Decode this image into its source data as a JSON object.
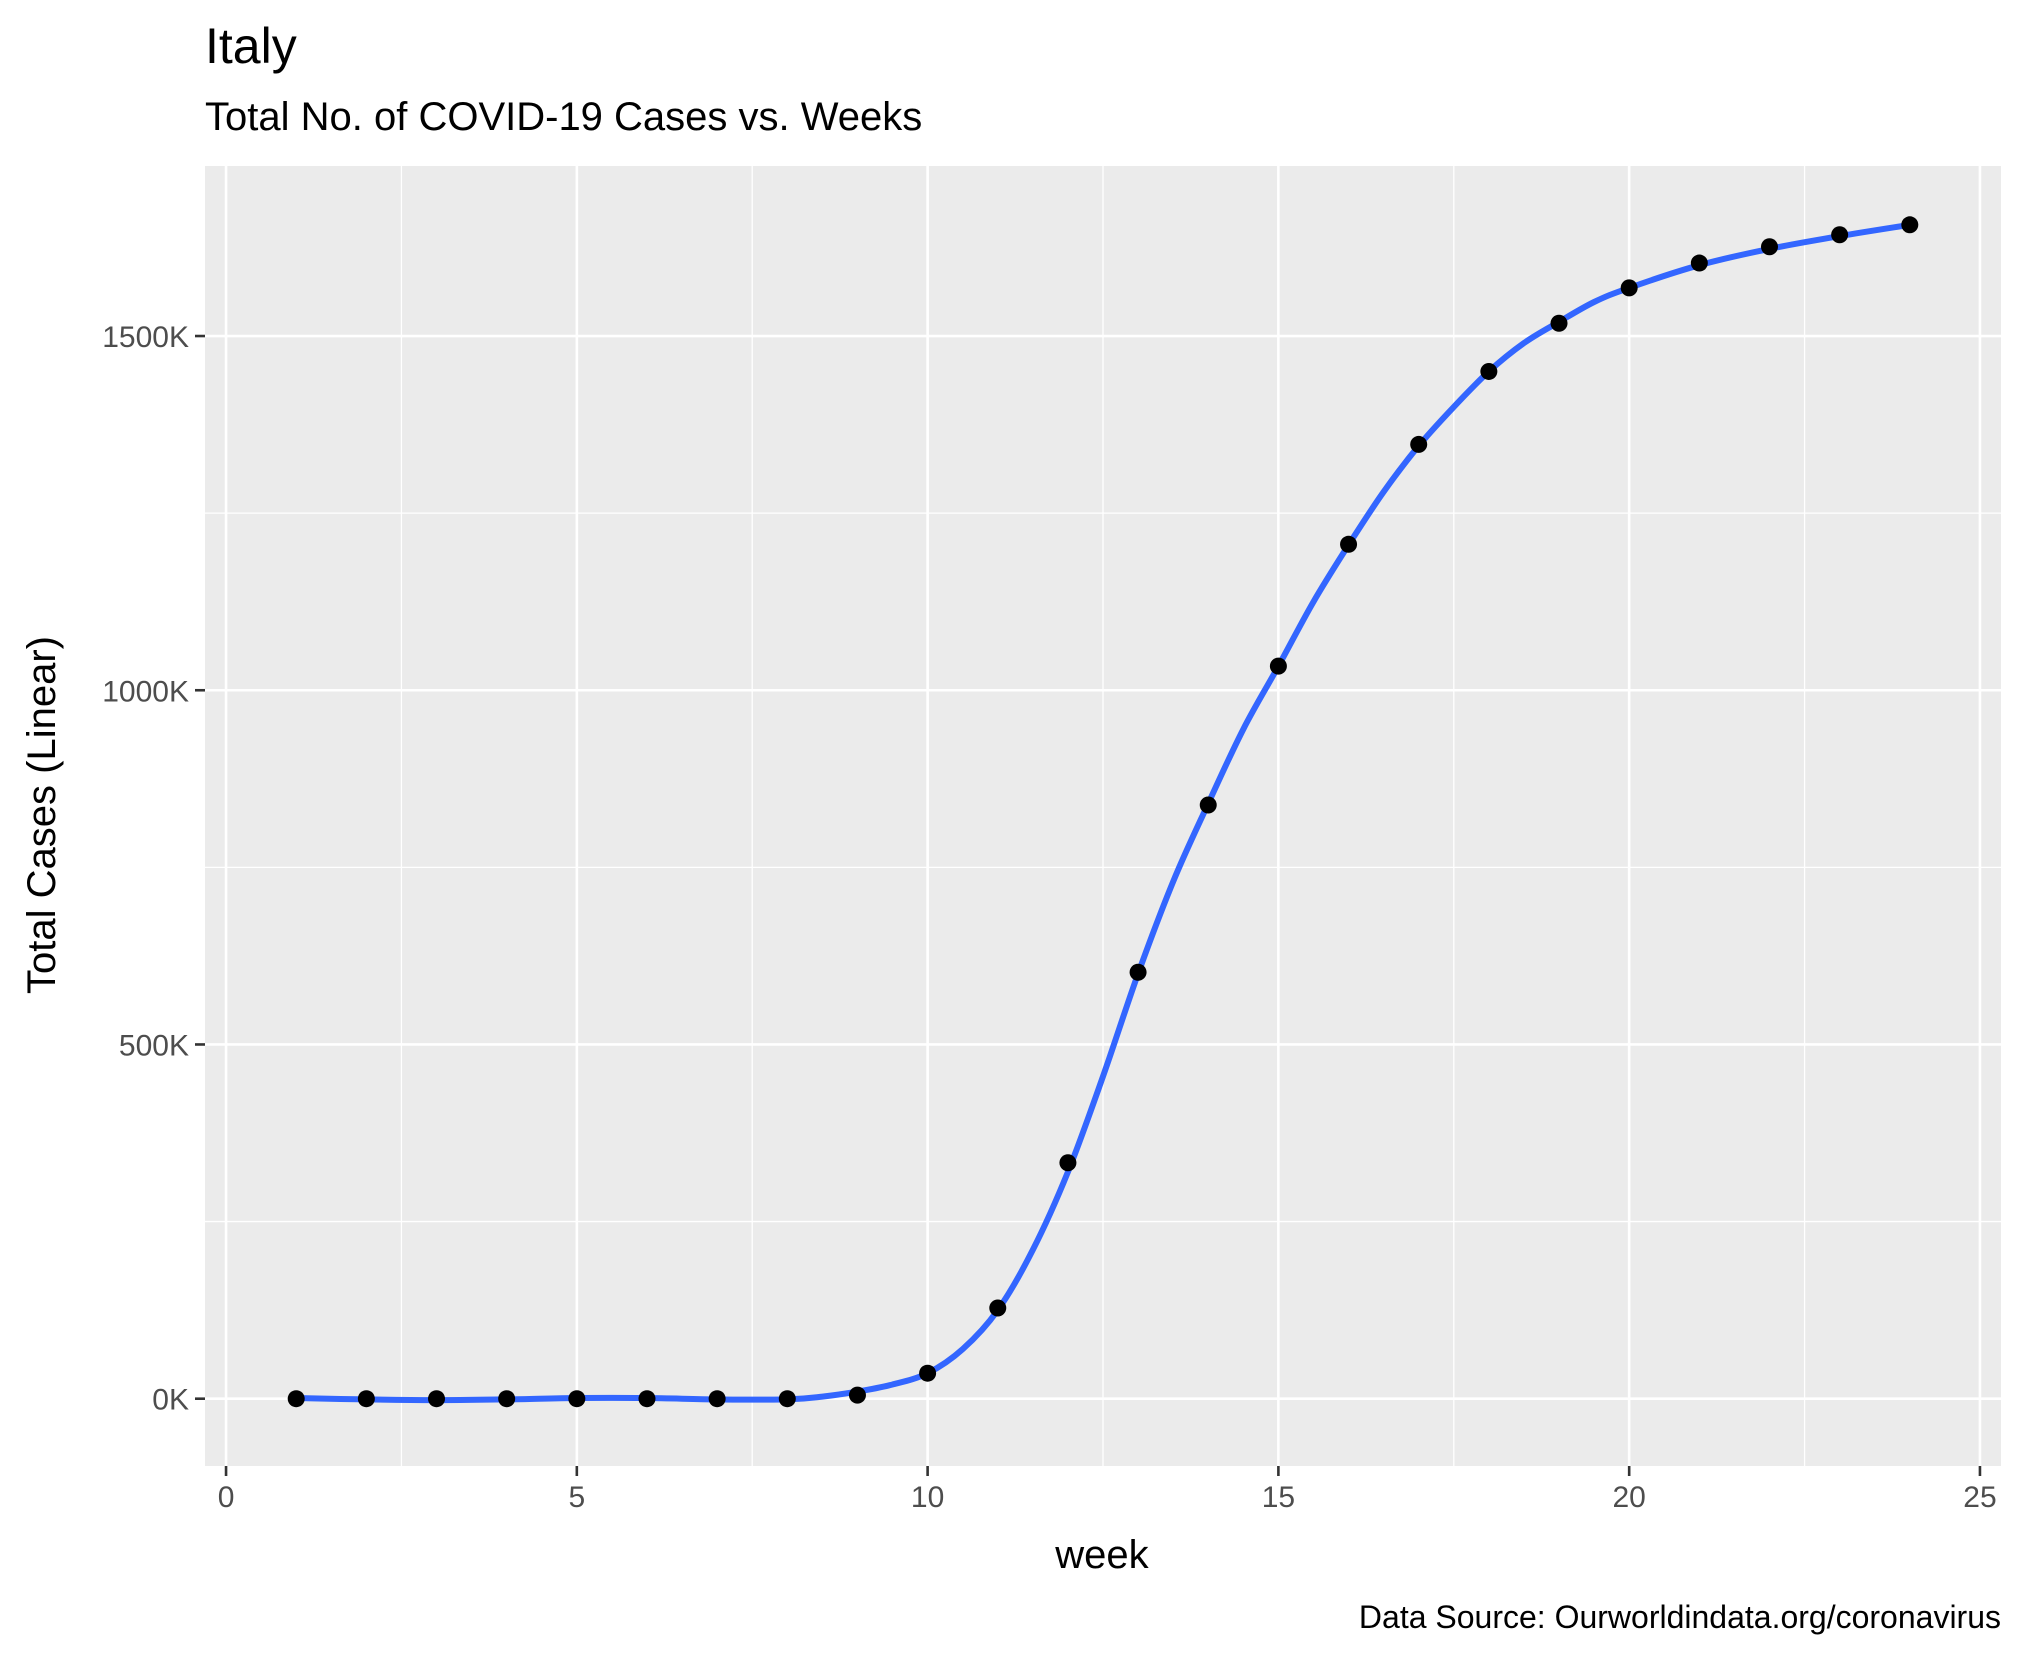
{
  "chart_data": {
    "type": "scatter",
    "title": "Italy",
    "subtitle": "Total No. of COVID-19 Cases vs. Weeks",
    "xlabel": "week",
    "ylabel": "Total Cases (Linear)",
    "caption": "Data Source: Ourworldindata.org/coronavirus",
    "xlim": [
      -0.3,
      25.3
    ],
    "ylim": [
      -95000,
      1740000
    ],
    "x_ticks": [
      0,
      5,
      10,
      15,
      20,
      25
    ],
    "x_tick_labels": [
      "0",
      "5",
      "10",
      "15",
      "20",
      "25"
    ],
    "y_ticks": [
      0,
      500000,
      1000000,
      1500000
    ],
    "y_tick_labels": [
      "0K",
      "500K",
      "1000K",
      "1500K"
    ],
    "grid": true,
    "points": {
      "x": [
        1,
        2,
        3,
        4,
        5,
        6,
        7,
        8,
        9,
        10,
        11,
        12,
        13,
        14,
        15,
        16,
        17,
        18,
        19,
        20,
        21,
        22,
        23,
        24
      ],
      "y": [
        0,
        0,
        0,
        0,
        0,
        0,
        0,
        0,
        5000,
        36000,
        128000,
        333000,
        602000,
        838000,
        1034000,
        1206000,
        1347000,
        1450000,
        1518000,
        1568000,
        1603000,
        1626000,
        1643000,
        1657000
      ]
    },
    "smooth": {
      "x": [
        1,
        2,
        3,
        4,
        5,
        6,
        7,
        8,
        8.5,
        9,
        9.5,
        10,
        10.5,
        11,
        11.5,
        12,
        12.5,
        13,
        13.5,
        14,
        14.5,
        15,
        15.5,
        16,
        16.5,
        17,
        17.5,
        18,
        18.5,
        19,
        19.5,
        20,
        21,
        22,
        23,
        24
      ],
      "y": [
        1000,
        -1000,
        -2000,
        -1000,
        1000,
        1000,
        -1000,
        -1000,
        3000,
        10000,
        20000,
        36000,
        70000,
        125000,
        210000,
        320000,
        455000,
        600000,
        730000,
        840000,
        945000,
        1034000,
        1125000,
        1205000,
        1280000,
        1345000,
        1400000,
        1450000,
        1490000,
        1520000,
        1548000,
        1568000,
        1600000,
        1623000,
        1641000,
        1657000
      ]
    },
    "colors": {
      "panel": "#ebebeb",
      "point": "#000000",
      "line": "#3366ff"
    }
  }
}
